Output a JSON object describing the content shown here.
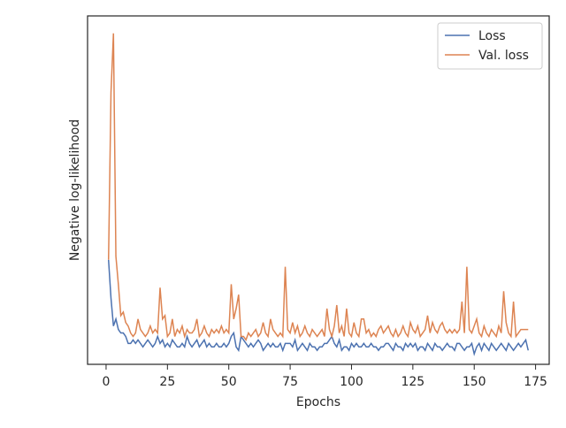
{
  "chart_data": {
    "type": "line",
    "xlabel": "Epochs",
    "ylabel": "Negative log-likelihood",
    "x": [
      1,
      2,
      3,
      4,
      5,
      6,
      7,
      8,
      9,
      10,
      11,
      12,
      13,
      14,
      15,
      16,
      17,
      18,
      19,
      20,
      21,
      22,
      23,
      24,
      25,
      26,
      27,
      28,
      29,
      30,
      31,
      32,
      33,
      34,
      35,
      36,
      37,
      38,
      39,
      40,
      41,
      42,
      43,
      44,
      45,
      46,
      47,
      48,
      49,
      50,
      51,
      52,
      53,
      54,
      55,
      56,
      57,
      58,
      59,
      60,
      61,
      62,
      63,
      64,
      65,
      66,
      67,
      68,
      69,
      70,
      71,
      72,
      73,
      74,
      75,
      76,
      77,
      78,
      79,
      80,
      81,
      82,
      83,
      84,
      85,
      86,
      87,
      88,
      89,
      90,
      91,
      92,
      93,
      94,
      95,
      96,
      97,
      98,
      99,
      100,
      101,
      102,
      103,
      104,
      105,
      106,
      107,
      108,
      109,
      110,
      111,
      112,
      113,
      114,
      115,
      116,
      117,
      118,
      119,
      120,
      121,
      122,
      123,
      124,
      125,
      126,
      127,
      128,
      129,
      130,
      131,
      132,
      133,
      134,
      135,
      136,
      137,
      138,
      139,
      140,
      141,
      142,
      143,
      144,
      145,
      146,
      147,
      148,
      149,
      150,
      151,
      152,
      153,
      154,
      155,
      156,
      157,
      158,
      159,
      160,
      161,
      162,
      163,
      164,
      165,
      166,
      167,
      168,
      169,
      170,
      171,
      172
    ],
    "series": [
      {
        "name": "Loss",
        "color": "#4c72b0",
        "values": [
          30,
          19,
          11,
          13,
          10,
          9,
          9,
          8,
          6,
          6,
          7,
          6,
          7,
          6,
          5,
          6,
          7,
          6,
          5,
          6,
          8,
          6,
          7,
          5,
          6,
          5,
          7,
          6,
          5,
          5,
          6,
          5,
          8,
          6,
          5,
          6,
          7,
          5,
          6,
          7,
          5,
          6,
          5,
          5,
          6,
          5,
          5,
          6,
          5,
          6,
          8,
          9,
          5,
          4,
          8,
          7,
          6,
          5,
          6,
          5,
          6,
          7,
          6,
          4,
          5,
          6,
          5,
          6,
          5,
          5,
          6,
          4,
          6,
          6,
          6,
          5,
          7,
          4,
          5,
          6,
          5,
          4,
          6,
          5,
          5,
          4,
          5,
          5,
          6,
          6,
          7,
          8,
          6,
          5,
          7,
          4,
          5,
          5,
          4,
          6,
          5,
          6,
          5,
          5,
          6,
          5,
          5,
          6,
          5,
          5,
          4,
          5,
          5,
          6,
          6,
          5,
          4,
          6,
          5,
          5,
          4,
          6,
          5,
          6,
          5,
          6,
          4,
          5,
          5,
          4,
          6,
          5,
          4,
          6,
          5,
          5,
          4,
          5,
          6,
          5,
          5,
          4,
          6,
          6,
          5,
          4,
          5,
          5,
          6,
          3,
          5,
          6,
          4,
          6,
          5,
          4,
          6,
          5,
          4,
          5,
          6,
          5,
          4,
          6,
          5,
          4,
          5,
          6,
          5,
          6,
          7,
          4
        ]
      },
      {
        "name": "Val. loss",
        "color": "#dd8452",
        "values": [
          30,
          78,
          95,
          31,
          23,
          14,
          15,
          12,
          11,
          9,
          8,
          9,
          13,
          10,
          9,
          8,
          9,
          11,
          9,
          10,
          9,
          22,
          13,
          14,
          8,
          9,
          13,
          8,
          10,
          9,
          11,
          8,
          10,
          9,
          9,
          10,
          13,
          8,
          9,
          11,
          9,
          8,
          10,
          9,
          10,
          9,
          11,
          9,
          10,
          9,
          23,
          13,
          16,
          20,
          8,
          8,
          7,
          9,
          8,
          9,
          10,
          8,
          9,
          12,
          9,
          8,
          13,
          10,
          9,
          8,
          9,
          8,
          28,
          10,
          9,
          12,
          9,
          11,
          8,
          9,
          11,
          9,
          8,
          10,
          9,
          8,
          9,
          10,
          8,
          16,
          10,
          8,
          11,
          17,
          9,
          11,
          8,
          16,
          9,
          8,
          12,
          9,
          8,
          13,
          13,
          9,
          10,
          8,
          9,
          8,
          10,
          11,
          9,
          10,
          11,
          9,
          8,
          10,
          8,
          9,
          11,
          9,
          8,
          12,
          10,
          9,
          11,
          8,
          9,
          10,
          14,
          9,
          12,
          10,
          9,
          11,
          12,
          10,
          9,
          10,
          9,
          10,
          9,
          10,
          18,
          9,
          28,
          10,
          9,
          11,
          13,
          9,
          8,
          11,
          9,
          8,
          10,
          9,
          8,
          11,
          9,
          21,
          12,
          9,
          8,
          18,
          8,
          9,
          10,
          10,
          10,
          10
        ]
      }
    ],
    "xlim": [
      -7.55,
      180.55
    ],
    "xticks": [
      0,
      25,
      50,
      75,
      100,
      125,
      150,
      175
    ],
    "ylim": [
      0,
      100
    ],
    "legend": "upper right",
    "grid": false
  }
}
